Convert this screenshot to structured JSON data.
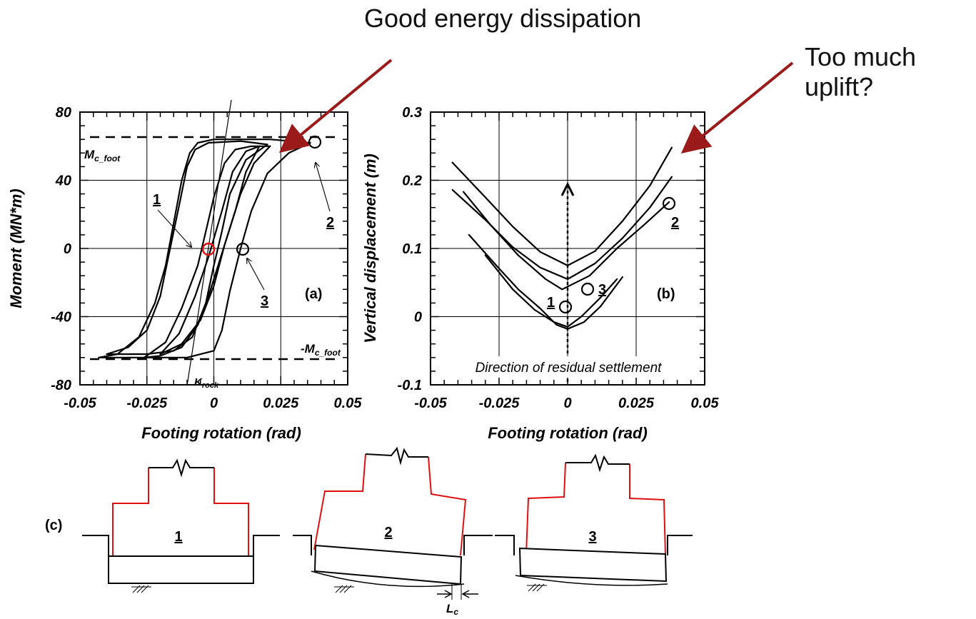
{
  "callouts": {
    "energy": "Good energy dissipation",
    "uplift_line1": "Too much",
    "uplift_line2": "uplift?"
  },
  "chart_data": [
    {
      "type": "line",
      "panel": "(a)",
      "xlabel": "Footing rotation (rad)",
      "ylabel": "Moment (MN*m)",
      "xlim": [
        -0.05,
        0.05
      ],
      "ylim": [
        -80,
        80
      ],
      "xticks": [
        "-0.05",
        "-0.025",
        "0",
        "0.025",
        "0.05"
      ],
      "yticks": [
        "80",
        "40",
        "0",
        "-40",
        "-80"
      ],
      "grid": true,
      "annotations": {
        "mc_pos": {
          "main": "M",
          "sub": "c_foot"
        },
        "mc_neg": {
          "main": "-M",
          "sub": "c_foot"
        },
        "krock": {
          "main": "K",
          "sub": "rock"
        },
        "p1": "1",
        "p2": "2",
        "p3": "3"
      },
      "reference_lines": [
        {
          "y": 64
        },
        {
          "y": -64
        }
      ],
      "marked_points": [
        {
          "label": "1",
          "x": -0.0015,
          "y": 0
        },
        {
          "label": "2",
          "x": 0.036,
          "y": 62
        },
        {
          "label": "3",
          "x": 0.01,
          "y": 0
        }
      ],
      "series": [
        {
          "values": [
            [
              -0.043,
              -64
            ],
            [
              -0.036,
              -62
            ],
            [
              -0.028,
              -52
            ],
            [
              -0.022,
              -32
            ],
            [
              -0.018,
              -10
            ],
            [
              -0.015,
              15
            ],
            [
              -0.012,
              40
            ],
            [
              -0.009,
              56
            ],
            [
              -0.006,
              62
            ],
            [
              0.0,
              64
            ],
            [
              0.021,
              64
            ],
            [
              0.036,
              62
            ]
          ]
        },
        {
          "values": [
            [
              0.036,
              62
            ],
            [
              0.028,
              56
            ],
            [
              0.02,
              44
            ],
            [
              0.014,
              22
            ],
            [
              0.01,
              0
            ],
            [
              0.006,
              -25
            ],
            [
              0.003,
              -48
            ],
            [
              0.0,
              -60
            ],
            [
              -0.01,
              -64
            ],
            [
              -0.03,
              -64
            ],
            [
              -0.043,
              -64
            ]
          ]
        },
        {
          "values": [
            [
              -0.04,
              -62
            ],
            [
              -0.032,
              -58
            ],
            [
              -0.025,
              -48
            ],
            [
              -0.02,
              -28
            ],
            [
              -0.017,
              -5
            ],
            [
              -0.013,
              25
            ],
            [
              -0.01,
              48
            ],
            [
              -0.007,
              58
            ],
            [
              -0.002,
              62
            ],
            [
              0.01,
              63
            ],
            [
              0.02,
              61
            ]
          ]
        },
        {
          "values": [
            [
              0.02,
              61
            ],
            [
              0.012,
              52
            ],
            [
              0.006,
              32
            ],
            [
              0.003,
              10
            ],
            [
              0.0,
              -10
            ],
            [
              -0.003,
              -32
            ],
            [
              -0.008,
              -52
            ],
            [
              -0.015,
              -60
            ],
            [
              -0.025,
              -62
            ],
            [
              -0.035,
              -62
            ],
            [
              -0.04,
              -62
            ]
          ]
        },
        {
          "values": [
            [
              -0.026,
              -64
            ],
            [
              -0.018,
              -55
            ],
            [
              -0.012,
              -35
            ],
            [
              -0.006,
              -10
            ],
            [
              -0.003,
              10
            ],
            [
              0.0,
              30
            ],
            [
              0.004,
              50
            ],
            [
              0.008,
              58
            ],
            [
              0.014,
              60
            ],
            [
              0.021,
              60
            ]
          ]
        },
        {
          "values": [
            [
              0.021,
              60
            ],
            [
              0.015,
              50
            ],
            [
              0.01,
              32
            ],
            [
              0.006,
              12
            ],
            [
              0.002,
              -8
            ],
            [
              -0.002,
              -28
            ],
            [
              -0.006,
              -45
            ],
            [
              -0.012,
              -58
            ],
            [
              -0.02,
              -63
            ],
            [
              -0.026,
              -64
            ]
          ]
        },
        {
          "values": [
            [
              -0.02,
              -62
            ],
            [
              -0.013,
              -50
            ],
            [
              -0.007,
              -28
            ],
            [
              -0.002,
              -5
            ],
            [
              0.003,
              22
            ],
            [
              0.007,
              45
            ],
            [
              0.012,
              57
            ],
            [
              0.017,
              60
            ]
          ]
        },
        {
          "values": [
            [
              0.017,
              60
            ],
            [
              0.012,
              45
            ],
            [
              0.008,
              22
            ],
            [
              0.004,
              2
            ],
            [
              0.0,
              -22
            ],
            [
              -0.005,
              -42
            ],
            [
              -0.012,
              -56
            ],
            [
              -0.02,
              -62
            ]
          ]
        }
      ]
    },
    {
      "type": "line",
      "panel": "(b)",
      "xlabel": "Footing rotation (rad)",
      "ylabel": "Vertical displacement (m)",
      "xlim": [
        -0.05,
        0.05
      ],
      "ylim": [
        -0.1,
        0.3
      ],
      "xticks": [
        "-0.05",
        "-0.025",
        "0",
        "0.025",
        "0.05"
      ],
      "yticks": [
        "0.3",
        "0.2",
        "0.1",
        "0",
        "-0.1"
      ],
      "grid": true,
      "annotations": {
        "direction": "Direction of residual settlement",
        "p1": "1",
        "p2": "2",
        "p3": "3"
      },
      "marked_points": [
        {
          "label": "1",
          "x": -0.001,
          "y": 0.015
        },
        {
          "label": "2",
          "x": 0.037,
          "y": 0.168
        },
        {
          "label": "3",
          "x": 0.007,
          "y": 0.042
        }
      ],
      "series": [
        {
          "values": [
            [
              -0.042,
              0.226
            ],
            [
              -0.03,
              0.175
            ],
            [
              -0.02,
              0.132
            ],
            [
              -0.01,
              0.095
            ],
            [
              0.0,
              0.075
            ],
            [
              0.01,
              0.096
            ],
            [
              0.02,
              0.14
            ],
            [
              0.03,
              0.192
            ],
            [
              0.038,
              0.248
            ]
          ]
        },
        {
          "values": [
            [
              -0.042,
              0.186
            ],
            [
              -0.03,
              0.142
            ],
            [
              -0.02,
              0.102
            ],
            [
              -0.01,
              0.072
            ],
            [
              0.0,
              0.055
            ],
            [
              0.01,
              0.078
            ],
            [
              0.02,
              0.115
            ],
            [
              0.03,
              0.16
            ],
            [
              0.038,
              0.205
            ]
          ]
        },
        {
          "values": [
            [
              -0.038,
              0.183
            ],
            [
              -0.028,
              0.134
            ],
            [
              -0.018,
              0.09
            ],
            [
              -0.008,
              0.055
            ],
            [
              -0.002,
              0.04
            ],
            [
              0.008,
              0.06
            ],
            [
              0.018,
              0.1
            ],
            [
              0.028,
              0.135
            ],
            [
              0.037,
              0.168
            ]
          ]
        },
        {
          "values": [
            [
              -0.036,
              0.12
            ],
            [
              -0.026,
              0.075
            ],
            [
              -0.018,
              0.04
            ],
            [
              -0.01,
              0.012
            ],
            [
              -0.004,
              -0.012
            ],
            [
              0.0,
              -0.018
            ],
            [
              0.006,
              -0.008
            ],
            [
              0.012,
              0.015
            ],
            [
              0.02,
              0.058
            ]
          ]
        },
        {
          "values": [
            [
              -0.03,
              0.09
            ],
            [
              -0.02,
              0.04
            ],
            [
              -0.012,
              0.01
            ],
            [
              -0.005,
              -0.008
            ],
            [
              0.0,
              -0.015
            ],
            [
              0.005,
              0.0
            ],
            [
              0.012,
              0.028
            ],
            [
              0.018,
              0.055
            ]
          ]
        }
      ]
    }
  ],
  "panel_c": {
    "label": "(c)",
    "lc": {
      "main": "L",
      "sub": "c"
    },
    "stages": [
      {
        "label": "1",
        "tilt_deg": 0
      },
      {
        "label": "2",
        "tilt_deg": -2.2
      },
      {
        "label": "3",
        "tilt_deg": -1.0
      }
    ]
  },
  "colors": {
    "arrow": "#9b1b1b",
    "circle_highlight": "#e01010",
    "structure_wall": "#e01010"
  }
}
